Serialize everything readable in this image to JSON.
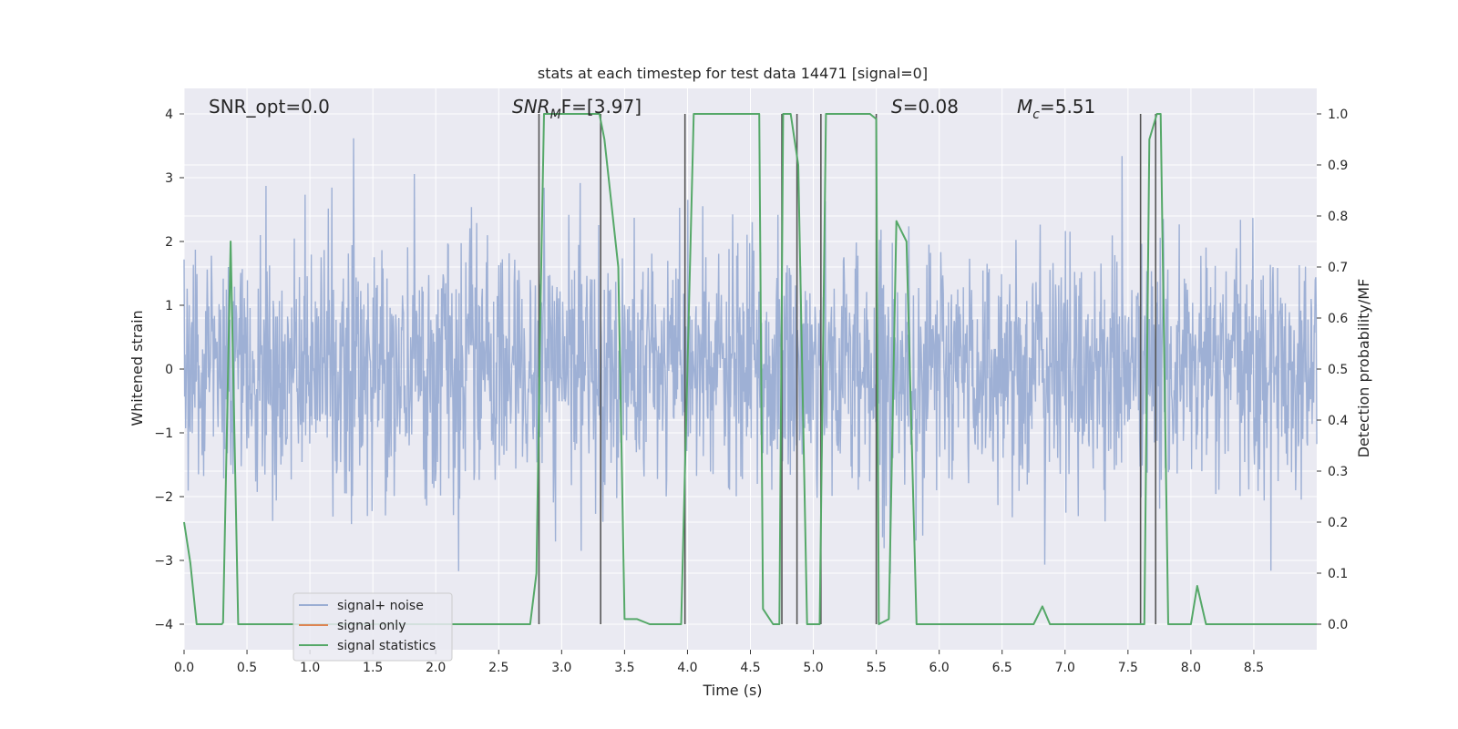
{
  "chart_data": {
    "type": "line",
    "title": "stats at each timestep for test data 14471 [signal=0]",
    "xlabel": "Time (s)",
    "ylabel_left": "Whitened strain",
    "ylabel_right": "Detection probability/MF",
    "xlim": [
      0,
      9.0
    ],
    "ylim_left": [
      -4.4,
      4.4
    ],
    "ylim_right": [
      -0.05,
      1.05
    ],
    "xticks": [
      0.0,
      0.5,
      1.0,
      1.5,
      2.0,
      2.5,
      3.0,
      3.5,
      4.0,
      4.5,
      5.0,
      5.5,
      6.0,
      6.5,
      7.0,
      7.5,
      8.0,
      8.5
    ],
    "xtick_labels": [
      "0.0",
      "0.5",
      "1.0",
      "1.5",
      "2.0",
      "2.5",
      "3.0",
      "3.5",
      "4.0",
      "4.5",
      "5.0",
      "5.5",
      "6.0",
      "6.5",
      "7.0",
      "7.5",
      "8.0",
      "8.5"
    ],
    "yticks_left": [
      -4,
      -3,
      -2,
      -1,
      0,
      1,
      2,
      3,
      4
    ],
    "ytick_labels_left": [
      "−4",
      "−3",
      "−2",
      "−1",
      "0",
      "1",
      "2",
      "3",
      "4"
    ],
    "yticks_right": [
      0.0,
      0.1,
      0.2,
      0.3,
      0.4,
      0.5,
      0.6,
      0.7,
      0.8,
      0.9,
      1.0
    ],
    "ytick_labels_right": [
      "0.0",
      "0.1",
      "0.2",
      "0.3",
      "0.4",
      "0.5",
      "0.6",
      "0.7",
      "0.8",
      "0.9",
      "1.0"
    ],
    "annotations": {
      "snr_opt": "SNR_opt=0.0",
      "snr_mf_base": "SNR",
      "snr_mf_sub": "M",
      "snr_mf_rest": "F=[3.97]",
      "s_label": "S",
      "s_value": "=0.08",
      "mc_base": "M",
      "mc_sub": "c",
      "mc_value": "=5.51"
    },
    "legend": {
      "position": "lower-left",
      "entries": [
        "signal+ noise",
        "signal only",
        "signal statistics"
      ]
    },
    "colors": {
      "noise": "#9aadd3",
      "signal_only": "#dd8452",
      "statistics": "#55a868",
      "vlines": "#555555",
      "background": "#eaeaf2",
      "grid": "#ffffff"
    },
    "series": [
      {
        "name": "signal+ noise",
        "description": "whitened strain noise, ~2000 samples, spikes up to about +/-4",
        "noise_seed": 14471,
        "n_samples": 2200,
        "sigma": 0.95,
        "clip": 4.0
      },
      {
        "name": "signal only",
        "x": [
          0.0,
          9.0
        ],
        "y": [
          0.0,
          0.0
        ]
      },
      {
        "name": "signal statistics",
        "x": [
          0.0,
          0.05,
          0.1,
          0.2,
          0.3,
          0.31,
          0.37,
          0.43,
          0.44,
          0.5,
          0.7,
          1.0,
          1.5,
          2.0,
          2.5,
          2.75,
          2.8,
          2.83,
          2.86,
          2.9,
          3.0,
          3.3,
          3.34,
          3.45,
          3.5,
          3.6,
          3.7,
          3.8,
          3.9,
          3.95,
          4.05,
          4.1,
          4.5,
          4.57,
          4.6,
          4.68,
          4.73,
          4.76,
          4.82,
          4.88,
          4.95,
          5.0,
          5.05,
          5.1,
          5.2,
          5.45,
          5.5,
          5.52,
          5.6,
          5.66,
          5.74,
          5.82,
          6.0,
          6.5,
          6.75,
          6.82,
          6.88,
          7.0,
          7.5,
          7.6,
          7.63,
          7.67,
          7.73,
          7.76,
          7.82,
          7.88,
          7.95,
          8.0,
          8.05,
          8.12,
          8.5,
          9.0
        ],
        "y": [
          0.2,
          0.12,
          0.0,
          0.0,
          0.0,
          0.003,
          0.75,
          0.0,
          0.0,
          0.0,
          0.0,
          0.0,
          0.0,
          0.0,
          0.0,
          0.0,
          0.1,
          0.6,
          1.0,
          1.0,
          1.0,
          1.0,
          0.95,
          0.7,
          0.01,
          0.01,
          0.0,
          0.0,
          0.0,
          0.0,
          1.0,
          1.0,
          1.0,
          1.0,
          0.03,
          0.0,
          0.0,
          1.0,
          1.0,
          0.9,
          0.0,
          0.0,
          0.0,
          1.0,
          1.0,
          1.0,
          0.99,
          0.0,
          0.01,
          0.79,
          0.75,
          0.0,
          0.0,
          0.0,
          0.0,
          0.035,
          0.0,
          0.0,
          0.0,
          0.0,
          0.0,
          0.95,
          1.0,
          1.0,
          0.0,
          0.0,
          0.0,
          0.0,
          0.075,
          0.0,
          0.0,
          0.0
        ]
      }
    ],
    "vertical_lines_x": [
      2.82,
      3.31,
      3.98,
      4.75,
      4.87,
      5.06,
      5.5,
      7.6,
      7.72
    ]
  }
}
